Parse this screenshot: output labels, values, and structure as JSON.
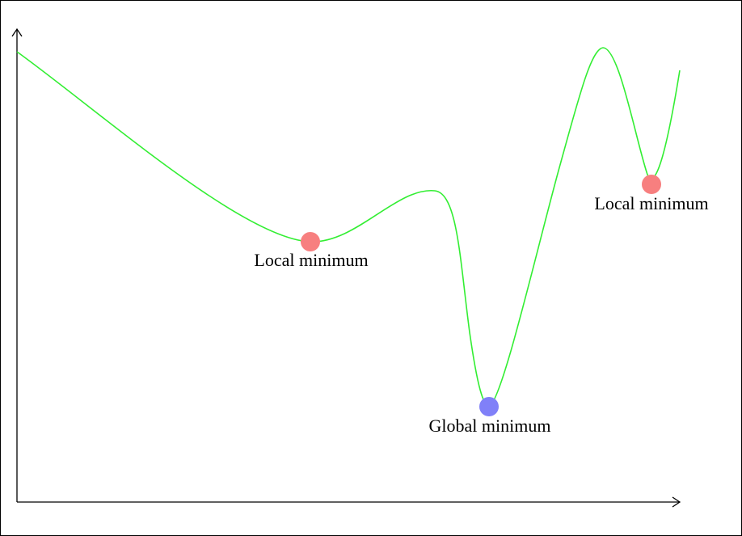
{
  "colors": {
    "curve": "#33ee33",
    "local_minimum_dot": "#f77f7f",
    "global_minimum_dot": "#8080f8",
    "axes": "#000000"
  },
  "annotations": {
    "local_minimum_1": "Local minimum",
    "global_minimum": "Global minimum",
    "local_minimum_2": "Local minimum"
  }
}
